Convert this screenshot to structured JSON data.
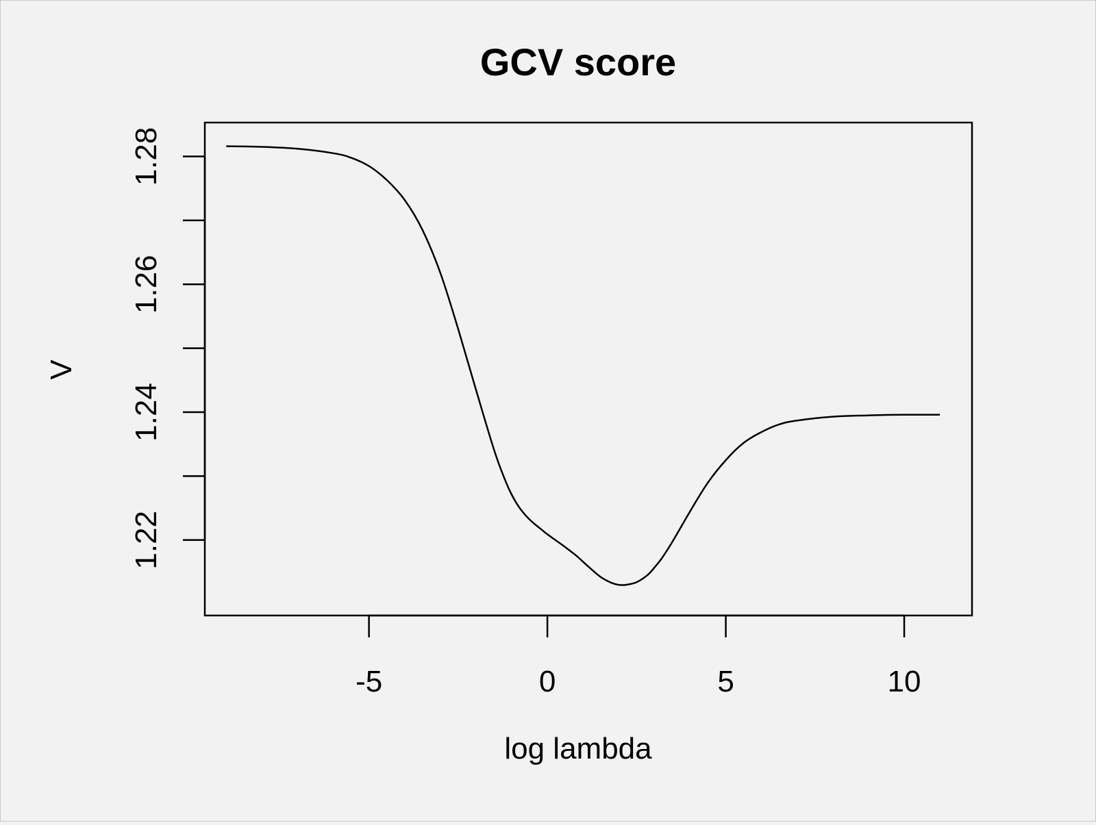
{
  "chart_data": {
    "type": "line",
    "title": "GCV score",
    "xlabel": "log lambda",
    "ylabel": "V",
    "xlim": [
      -9.6,
      11.9
    ],
    "ylim": [
      1.2082,
      1.2853
    ],
    "xticks": [
      -5,
      0,
      5,
      10
    ],
    "xtick_labels": [
      "-5",
      "0",
      "5",
      "10"
    ],
    "yticks": [
      1.22,
      1.23,
      1.24,
      1.25,
      1.26,
      1.27,
      1.28
    ],
    "yticks_labeled": [
      1.22,
      1.24,
      1.26,
      1.28
    ],
    "ytick_labels": [
      "1.22",
      "1.24",
      "1.26",
      "1.28"
    ],
    "grid": false,
    "line_color": "#000000",
    "background": "#f2f2f2",
    "series": [
      {
        "x": [
          -9.0,
          -8.0,
          -7.0,
          -6.0,
          -5.5,
          -5.0,
          -4.5,
          -4.0,
          -3.5,
          -3.0,
          -2.5,
          -2.0,
          -1.5,
          -1.2,
          -1.0,
          -0.8,
          -0.6,
          -0.4,
          -0.2,
          0.0,
          0.2,
          0.5,
          0.8,
          1.0,
          1.2,
          1.5,
          1.8,
          2.0,
          2.2,
          2.5,
          2.8,
          3.0,
          3.2,
          3.5,
          4.0,
          4.5,
          5.0,
          5.5,
          6.0,
          6.5,
          7.0,
          8.0,
          9.0,
          10.0,
          11.0
        ],
        "y": [
          1.2816,
          1.2815,
          1.2812,
          1.2805,
          1.2798,
          1.2785,
          1.2763,
          1.2732,
          1.2685,
          1.2618,
          1.253,
          1.2435,
          1.2342,
          1.2296,
          1.2271,
          1.2252,
          1.2238,
          1.2227,
          1.2218,
          1.2209,
          1.2201,
          1.2189,
          1.2176,
          1.2166,
          1.2156,
          1.2142,
          1.2133,
          1.213,
          1.213,
          1.2134,
          1.2145,
          1.2157,
          1.2171,
          1.2197,
          1.2245,
          1.229,
          1.2325,
          1.2352,
          1.2369,
          1.2381,
          1.2387,
          1.2393,
          1.2395,
          1.2396,
          1.2396
        ]
      }
    ]
  }
}
